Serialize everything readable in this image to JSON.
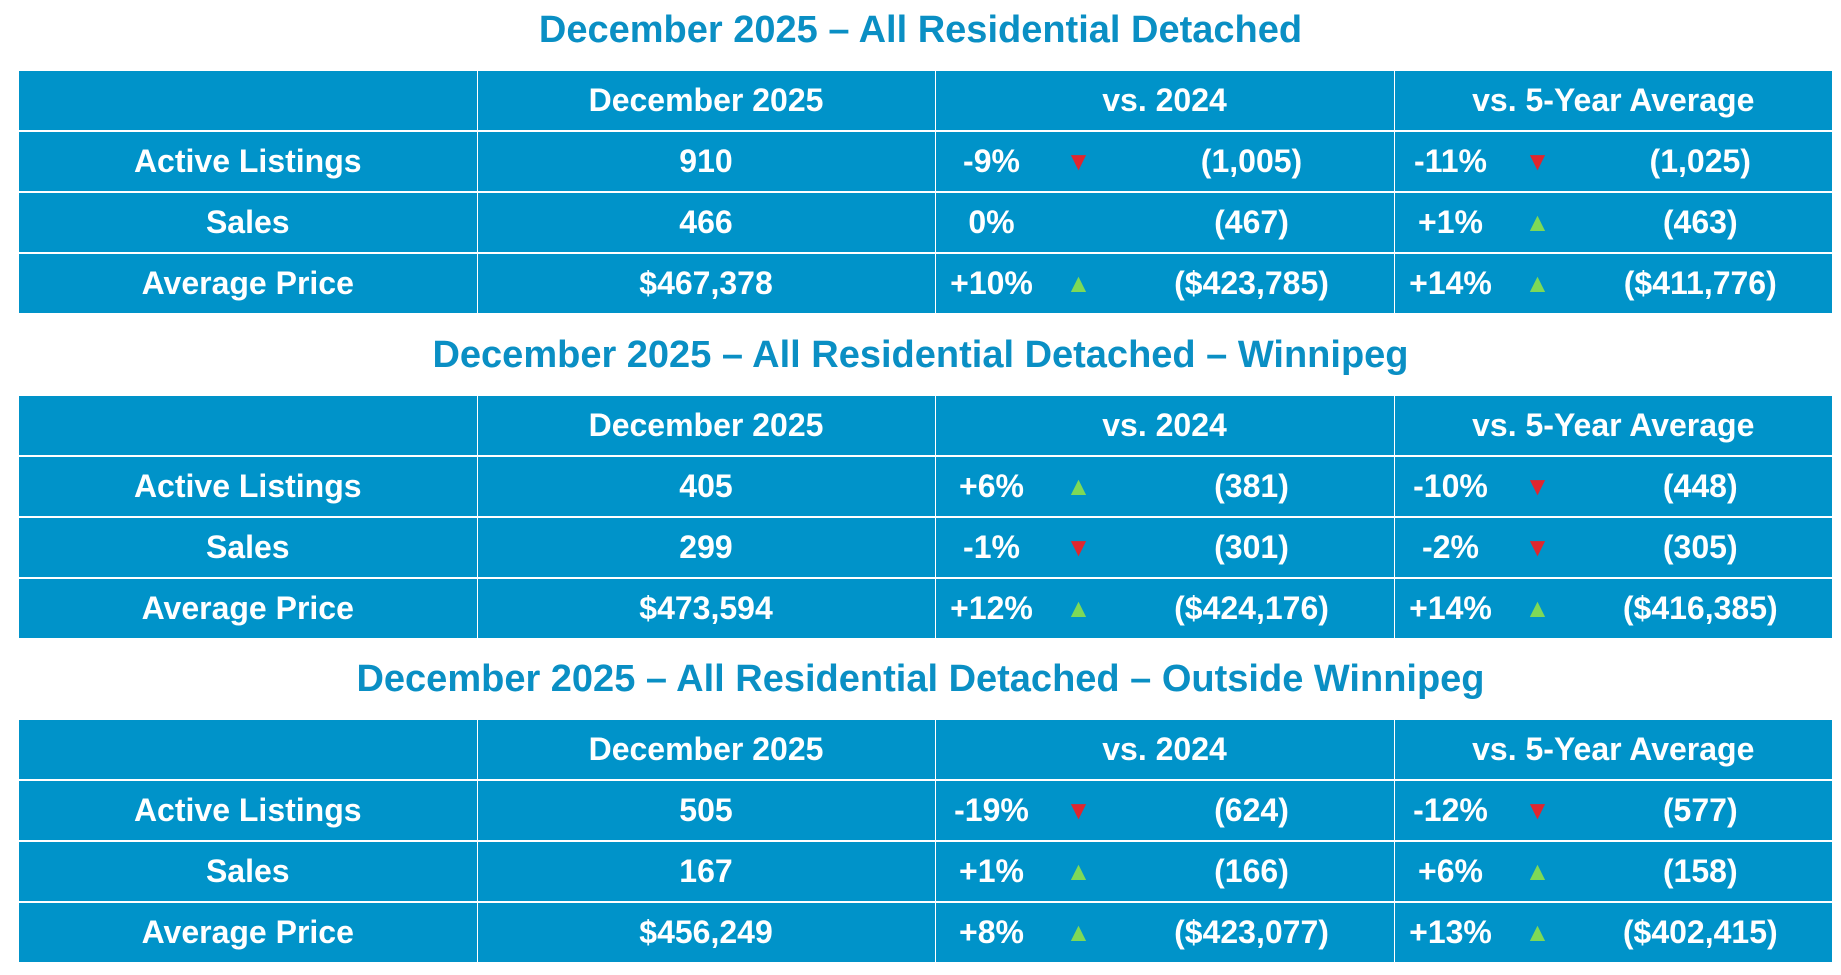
{
  "headers": {
    "month": "December 2025",
    "vs_prior_year": "vs. 2024",
    "vs_avg": "vs. 5-Year Average"
  },
  "sections": [
    {
      "title": "December 2025 – All Residential Detached",
      "rows": [
        {
          "label": "Active Listings",
          "value": "910",
          "vs_year": {
            "pct": "-9%",
            "dir": "down",
            "ref": "(1,005)"
          },
          "vs_avg": {
            "pct": "-11%",
            "dir": "down",
            "ref": "(1,025)"
          }
        },
        {
          "label": "Sales",
          "value": "466",
          "vs_year": {
            "pct": "0%",
            "dir": "none",
            "ref": "(467)"
          },
          "vs_avg": {
            "pct": "+1%",
            "dir": "up",
            "ref": "(463)"
          }
        },
        {
          "label": "Average Price",
          "value": "$467,378",
          "vs_year": {
            "pct": "+10%",
            "dir": "up",
            "ref": "($423,785)"
          },
          "vs_avg": {
            "pct": "+14%",
            "dir": "up",
            "ref": "($411,776)"
          }
        }
      ]
    },
    {
      "title": "December 2025 – All Residential Detached – Winnipeg",
      "rows": [
        {
          "label": "Active Listings",
          "value": "405",
          "vs_year": {
            "pct": "+6%",
            "dir": "up",
            "ref": "(381)"
          },
          "vs_avg": {
            "pct": "-10%",
            "dir": "down",
            "ref": "(448)"
          }
        },
        {
          "label": "Sales",
          "value": "299",
          "vs_year": {
            "pct": "-1%",
            "dir": "down",
            "ref": "(301)"
          },
          "vs_avg": {
            "pct": "-2%",
            "dir": "down",
            "ref": "(305)"
          }
        },
        {
          "label": "Average Price",
          "value": "$473,594",
          "vs_year": {
            "pct": "+12%",
            "dir": "up",
            "ref": "($424,176)"
          },
          "vs_avg": {
            "pct": "+14%",
            "dir": "up",
            "ref": "($416,385)"
          }
        }
      ]
    },
    {
      "title": "December 2025 – All Residential Detached – Outside Winnipeg",
      "rows": [
        {
          "label": "Active Listings",
          "value": "505",
          "vs_year": {
            "pct": "-19%",
            "dir": "down",
            "ref": "(624)"
          },
          "vs_avg": {
            "pct": "-12%",
            "dir": "down",
            "ref": "(577)"
          }
        },
        {
          "label": "Sales",
          "value": "167",
          "vs_year": {
            "pct": "+1%",
            "dir": "up",
            "ref": "(166)"
          },
          "vs_avg": {
            "pct": "+6%",
            "dir": "up",
            "ref": "(158)"
          }
        },
        {
          "label": "Average Price",
          "value": "$456,249",
          "vs_year": {
            "pct": "+8%",
            "dir": "up",
            "ref": "($423,077)"
          },
          "vs_avg": {
            "pct": "+13%",
            "dir": "up",
            "ref": "($402,415)"
          }
        }
      ]
    }
  ],
  "colors": {
    "table_bg": "#0093c9",
    "title": "#0a8fc4",
    "up": "#7ed957",
    "down": "#e0262e"
  },
  "icons": {
    "up": "triangle-up-icon",
    "down": "triangle-down-icon"
  }
}
